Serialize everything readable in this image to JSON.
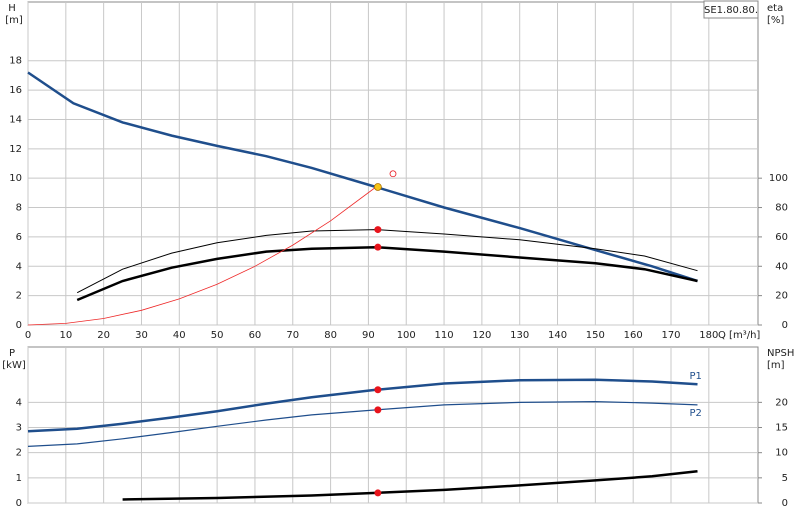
{
  "chart_data": [
    {
      "type": "line",
      "x_label": "Q [m³/h]",
      "y_label": "H",
      "y_unit": "[m]",
      "y2_label": "eta",
      "y2_unit": "[%]",
      "annotation": "SE1.80.80.",
      "xlim": [
        0,
        193
      ],
      "xticks": [
        0,
        10,
        20,
        30,
        40,
        50,
        60,
        70,
        80,
        90,
        100,
        110,
        120,
        130,
        140,
        150,
        160,
        170,
        180
      ],
      "ylim": [
        0,
        22
      ],
      "yticks": [
        0,
        2,
        4,
        6,
        8,
        10,
        12,
        14,
        16,
        18
      ],
      "y2lim": [
        0,
        220
      ],
      "y2ticks": [
        0,
        20,
        40,
        60,
        80,
        100
      ],
      "grid": true,
      "series": [
        {
          "color": "#1f4e8c",
          "width": 2.5,
          "x": [
            0,
            12,
            25,
            38,
            50,
            63,
            75,
            92,
            110,
            130,
            150,
            165,
            177
          ],
          "values": [
            17.2,
            15.1,
            13.8,
            12.9,
            12.2,
            11.5,
            10.7,
            9.4,
            8.0,
            6.6,
            5.1,
            4.0,
            3.0
          ]
        },
        {
          "color": "#000000",
          "width": 1,
          "axis": "y2",
          "x": [
            13,
            25,
            38,
            50,
            63,
            75,
            92,
            110,
            130,
            150,
            163,
            177
          ],
          "values": [
            22,
            38,
            49,
            56,
            61,
            64,
            65,
            62,
            58,
            52,
            47,
            37
          ]
        },
        {
          "color": "#000000",
          "width": 2.5,
          "axis": "y2",
          "x": [
            13,
            25,
            38,
            50,
            63,
            75,
            92,
            110,
            130,
            150,
            163,
            177
          ],
          "values": [
            17,
            30,
            39,
            45,
            50,
            52,
            53,
            50,
            46,
            42,
            38,
            30
          ]
        },
        {
          "color": "#ee2a2a",
          "width": 0.8,
          "x": [
            0,
            10,
            20,
            30,
            40,
            50,
            60,
            70,
            80,
            92
          ],
          "values": [
            0,
            0.11,
            0.44,
            1.0,
            1.78,
            2.78,
            4.0,
            5.44,
            7.1,
            9.4
          ]
        }
      ],
      "points": [
        {
          "x": 92.5,
          "y": 9.4,
          "color": "#f5c518"
        },
        {
          "x": 92.5,
          "y": 65,
          "axis": "y2",
          "color": "#e8141c"
        },
        {
          "x": 92.5,
          "y": 53,
          "axis": "y2",
          "color": "#e8141c"
        },
        {
          "x": 96.5,
          "y": 10.3,
          "color": "#e8141c",
          "hollow": true
        }
      ]
    },
    {
      "type": "line",
      "y_label": "P",
      "y_unit": "[kW]",
      "y2_label": "NPSH",
      "y2_unit": "[m]",
      "xlim": [
        0,
        193
      ],
      "xticks": [
        0,
        10,
        20,
        30,
        40,
        50,
        60,
        70,
        80,
        90,
        100,
        110,
        120,
        130,
        140,
        150,
        160,
        170,
        180
      ],
      "xtick_labels": false,
      "ylim": [
        0,
        6.2
      ],
      "yticks": [
        0,
        1,
        2,
        3,
        4
      ],
      "y2lim": [
        0,
        31
      ],
      "y2ticks": [
        0,
        5,
        10,
        15,
        20
      ],
      "grid": true,
      "series": [
        {
          "name": "P1",
          "color": "#1f4e8c",
          "width": 2.5,
          "x": [
            0,
            13,
            25,
            38,
            50,
            63,
            75,
            92,
            110,
            130,
            150,
            165,
            177
          ],
          "values": [
            2.85,
            2.95,
            3.15,
            3.4,
            3.65,
            3.95,
            4.2,
            4.5,
            4.75,
            4.88,
            4.9,
            4.83,
            4.72
          ]
        },
        {
          "name": "P2",
          "color": "#1f4e8c",
          "width": 1.2,
          "x": [
            0,
            13,
            25,
            38,
            50,
            63,
            75,
            92,
            110,
            130,
            150,
            165,
            177
          ],
          "values": [
            2.25,
            2.35,
            2.55,
            2.8,
            3.05,
            3.3,
            3.5,
            3.7,
            3.9,
            4.0,
            4.03,
            3.97,
            3.9
          ]
        },
        {
          "color": "#000000",
          "width": 2.5,
          "axis": "y2",
          "x": [
            25,
            50,
            75,
            92,
            110,
            130,
            150,
            165,
            177
          ],
          "values": [
            0.7,
            1.0,
            1.5,
            2.0,
            2.6,
            3.5,
            4.5,
            5.3,
            6.3
          ]
        }
      ],
      "points": [
        {
          "x": 92.5,
          "y": 4.5,
          "color": "#e8141c"
        },
        {
          "x": 92.5,
          "y": 3.7,
          "color": "#e8141c"
        },
        {
          "x": 92.5,
          "y": 2.0,
          "axis": "y2",
          "color": "#e8141c"
        }
      ]
    }
  ]
}
